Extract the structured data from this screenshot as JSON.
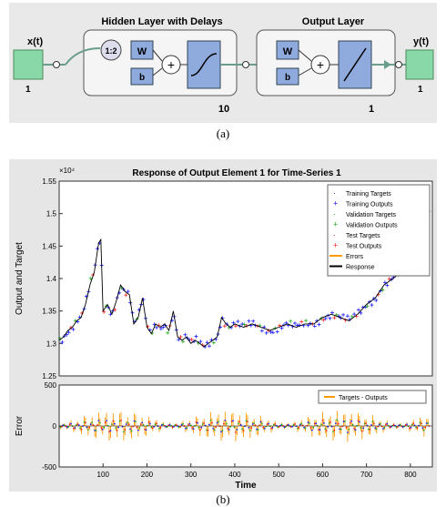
{
  "network": {
    "input_label": "x(t)",
    "input_size": "1",
    "hidden_title": "Hidden Layer with Delays",
    "delay_label": "1:2",
    "hidden_w": "W",
    "hidden_b": "b",
    "hidden_size": "10",
    "output_title": "Output Layer",
    "output_w": "W",
    "output_b": "b",
    "output_size": "1",
    "output_label": "y(t)",
    "output_dim": "1",
    "colors": {
      "block": "#8faadc",
      "io": "#88d8a8",
      "frame": "#f5f5f5"
    }
  },
  "captions": {
    "a": "(a)",
    "b": "(b)"
  },
  "chart_data": [
    {
      "type": "line",
      "title": "Response of Output Element 1 for Time-Series 1",
      "ylabel": "Output and Target",
      "y_exponent": "×10⁴",
      "xlim": [
        0,
        850
      ],
      "ylim": [
        1.25,
        1.55
      ],
      "yticks": [
        "1.25",
        "1.3",
        "1.35",
        "1.4",
        "1.45",
        "1.5",
        "1.55"
      ],
      "legend_position": "top-right",
      "legend": [
        "Training Targets",
        "Training Outputs",
        "Validation Targets",
        "Validation Outputs",
        "Test Targets",
        "Test Outputs",
        "Errors",
        "Response"
      ],
      "colors": {
        "train": "#1a1aff",
        "validation": "#22aa22",
        "test": "#ff2222",
        "errors": "#ff9900",
        "response": "#000000"
      },
      "series": [
        {
          "name": "Response",
          "x": [
            0,
            10,
            20,
            30,
            40,
            50,
            60,
            70,
            80,
            90,
            95,
            100,
            110,
            120,
            130,
            140,
            150,
            160,
            170,
            180,
            190,
            200,
            210,
            220,
            230,
            240,
            250,
            260,
            270,
            280,
            290,
            300,
            310,
            320,
            330,
            340,
            350,
            360,
            370,
            380,
            390,
            400,
            420,
            440,
            460,
            480,
            500,
            520,
            540,
            560,
            580,
            600,
            620,
            640,
            660,
            680,
            700,
            720,
            740,
            760,
            780,
            800,
            820,
            840
          ],
          "y": [
            1.305,
            1.31,
            1.32,
            1.325,
            1.335,
            1.34,
            1.36,
            1.39,
            1.41,
            1.455,
            1.46,
            1.35,
            1.36,
            1.345,
            1.365,
            1.39,
            1.38,
            1.375,
            1.33,
            1.34,
            1.37,
            1.325,
            1.315,
            1.33,
            1.325,
            1.33,
            1.32,
            1.35,
            1.31,
            1.305,
            1.31,
            1.3,
            1.305,
            1.3,
            1.295,
            1.3,
            1.305,
            1.31,
            1.34,
            1.33,
            1.325,
            1.33,
            1.325,
            1.33,
            1.325,
            1.32,
            1.325,
            1.33,
            1.325,
            1.33,
            1.33,
            1.34,
            1.345,
            1.34,
            1.335,
            1.345,
            1.36,
            1.37,
            1.39,
            1.4,
            1.41,
            1.43,
            1.5,
            1.51
          ]
        }
      ]
    },
    {
      "type": "line",
      "ylabel": "Error",
      "xlabel": "Time",
      "xlim": [
        0,
        850
      ],
      "ylim": [
        -500,
        500
      ],
      "yticks": [
        "-500",
        "0",
        "500"
      ],
      "xticks": [
        "100",
        "200",
        "300",
        "400",
        "500",
        "600",
        "700",
        "800"
      ],
      "legend_position": "top-right",
      "legend": [
        "Targets - Outputs"
      ],
      "error_band": [
        -200,
        200
      ]
    }
  ]
}
